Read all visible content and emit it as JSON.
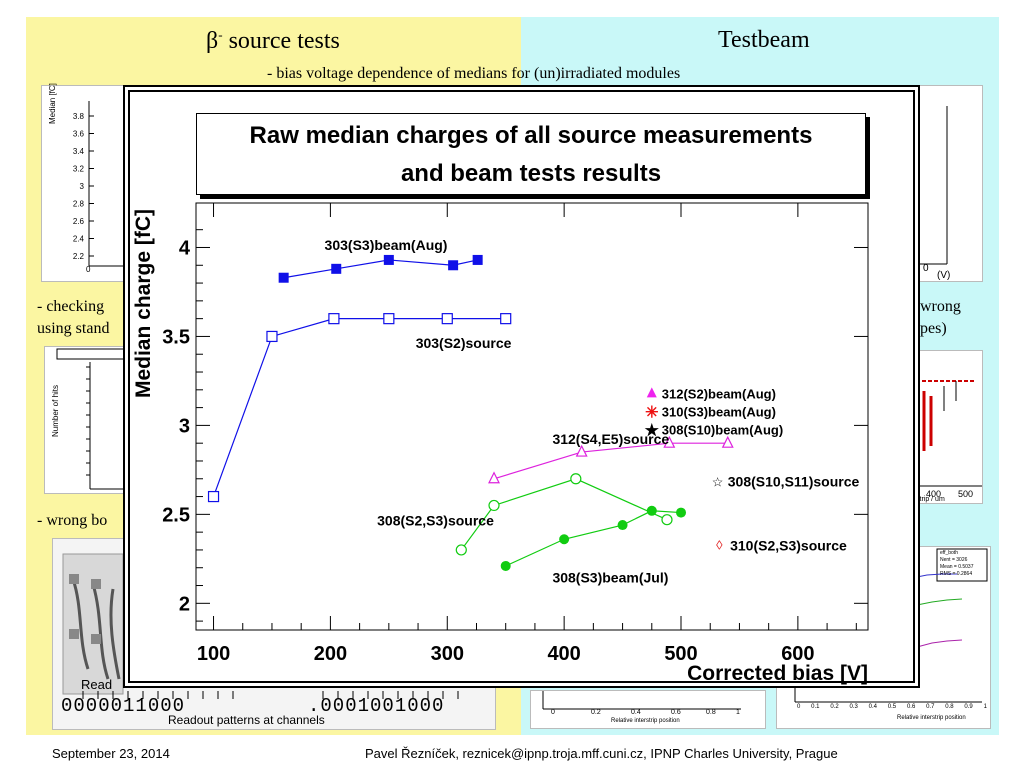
{
  "slide": {
    "left_title_prefix": "β",
    "left_title_sup": "-",
    "left_title_rest": " source tests",
    "right_title": "Testbeam",
    "subtitle": "- bias voltage dependence of medians for (un)irradiated modules",
    "left_note_1": "- checking",
    "left_note_2": "using stand",
    "left_note_3": "- wrong bo",
    "right_note_1": "wrong",
    "right_note_2": "pes)",
    "readout_left": "Read",
    "readout_bits_left": "0000011000",
    "readout_bits_right": ".0001001000",
    "readout_caption": "Readout patterns at channels",
    "thumb_median_label": "Median [fC]",
    "thumb_median_ticks": [
      "3.8",
      "3.6",
      "3.4",
      "3.2",
      "3",
      "2.8",
      "2.6",
      "2.4",
      "2.2"
    ],
    "thumb_zero": "0",
    "thumb_v_label": "(V)",
    "thumb_number_label": "Number of hits",
    "thumb_strip_ticks": [
      "400",
      "500"
    ],
    "thumb_strip_label": "strip / um",
    "thumb_rel_label_1": "Relative interstrip position",
    "thumb_rel_label_2": "Relative interstrip position",
    "thumb_ticks_bottom": [
      "0",
      "0.1",
      "0.2",
      "0.3",
      "0.4",
      "0.5",
      "0.6",
      "0.7",
      "0.8",
      "0.9",
      "1"
    ],
    "thumb_ticks_bottom2": [
      "0",
      "0.2",
      "0.4",
      "0.6",
      "0.8",
      "1"
    ],
    "thumb_stats_name": "eff_both",
    "thumb_stats_entries": "Nent = 3026",
    "thumb_stats_mean": "Mean = 0.5037",
    "thumb_stats_rms": "RMS = 0.2864"
  },
  "footer": {
    "date": "September 23, 2014",
    "author": "Pavel Řezníček, reznicek@ipnp.troja.mff.cuni.cz, IPNP Charles University, Prague"
  },
  "chart_title_1": "Raw median charges of all source measurements",
  "chart_title_2": "and beam tests results",
  "chart_data": {
    "type": "scatter",
    "title": "Raw median charges of all source measurements and beam tests results",
    "xlabel": "Corrected bias [V]",
    "ylabel": "Median charge [fC]",
    "xlim": [
      85,
      660
    ],
    "ylim": [
      1.85,
      4.25
    ],
    "xticks": [
      100,
      200,
      300,
      400,
      500,
      600
    ],
    "yticks": [
      2,
      2.5,
      3,
      3.5,
      4
    ],
    "grid": false,
    "series": [
      {
        "name": "303(S3)beam(Aug)",
        "color": "#1010e8",
        "marker": "square-filled",
        "x": [
          160,
          205,
          250,
          305,
          326
        ],
        "y": [
          3.83,
          3.88,
          3.93,
          3.9,
          3.93
        ]
      },
      {
        "name": "303(S2)source",
        "color": "#1010e8",
        "marker": "square-open",
        "x": [
          100,
          150,
          203,
          250,
          300,
          350
        ],
        "y": [
          2.6,
          3.5,
          3.6,
          3.6,
          3.6,
          3.6
        ]
      },
      {
        "name": "312(S4,E5)source",
        "color": "#dd22dd",
        "marker": "triangle-open",
        "x": [
          340,
          415,
          490,
          540
        ],
        "y": [
          2.7,
          2.85,
          2.9,
          2.9
        ]
      },
      {
        "name": "308(S2,S3)source",
        "color": "#11cc11",
        "marker": "circle-open",
        "x": [
          312,
          340,
          410,
          488
        ],
        "y": [
          2.3,
          2.55,
          2.7,
          2.47
        ]
      },
      {
        "name": "308(S3)beam(Jul)",
        "color": "#11cc11",
        "marker": "circle-filled",
        "x": [
          350,
          400,
          450,
          475,
          500
        ],
        "y": [
          2.21,
          2.36,
          2.44,
          2.52,
          2.51
        ]
      }
    ],
    "annotations": [
      {
        "text": "303(S3)beam(Aug)",
        "color": "#000000"
      },
      {
        "text": "303(S2)source",
        "color": "#000000"
      },
      {
        "text": "312(S4,E5)source",
        "color": "#000000"
      },
      {
        "text": "308(S2,S3)source",
        "color": "#000000"
      },
      {
        "text": "308(S3)beam(Jul)",
        "color": "#000000"
      },
      {
        "text": "308(S10,S11)source",
        "color": "#000000",
        "marker": "star-open"
      },
      {
        "text": "310(S2,S3)source",
        "color": "#000000",
        "marker": "diamond-red"
      }
    ],
    "legend": {
      "placement": "right",
      "entries": [
        {
          "name": "312(S2)beam(Aug)",
          "marker": "triangle-filled",
          "color": "#ee22ee"
        },
        {
          "name": "310(S3)beam(Aug)",
          "marker": "asterisk",
          "color": "#ee1111"
        },
        {
          "name": "308(S10)beam(Aug)",
          "marker": "star-filled",
          "color": "#000000"
        }
      ]
    }
  }
}
